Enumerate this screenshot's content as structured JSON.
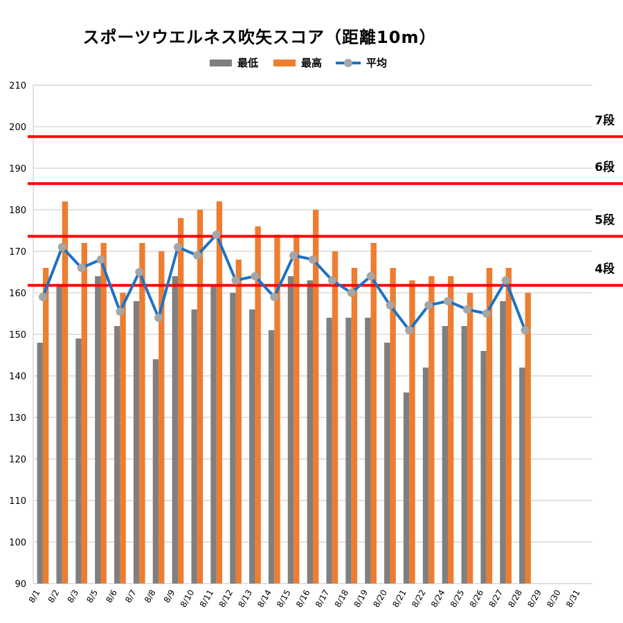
{
  "chart_data": {
    "type": "bar",
    "title": "スポーツウエルネス吹矢スコア（距離10m）",
    "categories": [
      "8/1",
      "8/2",
      "8/3",
      "8/5",
      "8/6",
      "8/7",
      "8/8",
      "8/9",
      "8/10",
      "8/11",
      "8/12",
      "8/13",
      "8/14",
      "8/15",
      "8/16",
      "8/17",
      "8/18",
      "8/19",
      "8/20",
      "8/21",
      "8/22",
      "8/24",
      "8/25",
      "8/26",
      "8/27",
      "8/28",
      "8/29",
      "8/30",
      "8/31"
    ],
    "series": [
      {
        "name": "最低",
        "type": "bar",
        "color": "#7f7f7f",
        "values": [
          148,
          162,
          149,
          164,
          152,
          158,
          144,
          164,
          156,
          162,
          160,
          156,
          151,
          164,
          163,
          154,
          154,
          154,
          148,
          136,
          142,
          152,
          152,
          146,
          158,
          142,
          null,
          null,
          null
        ]
      },
      {
        "name": "最高",
        "type": "bar",
        "color": "#ed7d31",
        "values": [
          166,
          182,
          172,
          172,
          160,
          172,
          170,
          178,
          180,
          182,
          168,
          176,
          174,
          174,
          180,
          170,
          166,
          172,
          166,
          163,
          164,
          164,
          160,
          166,
          166,
          160,
          null,
          null,
          null
        ]
      },
      {
        "name": "平均",
        "type": "line",
        "color": "#1d72c4",
        "marker_color": "#a6a6a6",
        "values": [
          159,
          171,
          166,
          168,
          155.5,
          165,
          154,
          171,
          169,
          174,
          163,
          164,
          159,
          169,
          168,
          163,
          160,
          164,
          157,
          151,
          157,
          158,
          156,
          155,
          163,
          151,
          null,
          null,
          null
        ]
      }
    ],
    "ylim": [
      90,
      210
    ],
    "yticks": [
      "90",
      "100",
      "110",
      "120",
      "130",
      "140",
      "150",
      "160",
      "170",
      "180",
      "190",
      "200",
      "210"
    ],
    "grid": true,
    "legend_position": "top",
    "reference_lines": [
      {
        "label": "4段",
        "value": 161.8,
        "color": "#ff0000"
      },
      {
        "label": "5段",
        "value": 173.6,
        "color": "#ff0000"
      },
      {
        "label": "6段",
        "value": 186.3,
        "color": "#ff0000"
      },
      {
        "label": "7段",
        "value": 197.6,
        "color": "#ff0000"
      }
    ]
  }
}
